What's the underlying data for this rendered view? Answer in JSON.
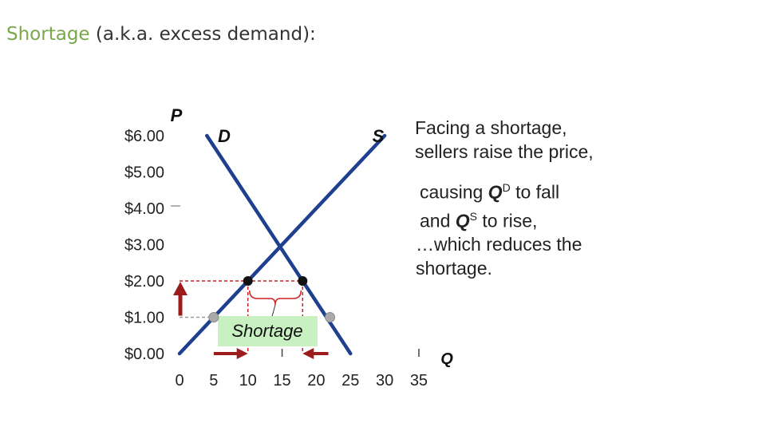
{
  "title": {
    "accent": "Shortage",
    "rest": " (a.k.a. excess demand):"
  },
  "annotations": {
    "line1": "Facing a shortage,",
    "line2": "sellers raise the price,",
    "line3a": "causing ",
    "line3q": "Q",
    "line3sup": "D",
    "line3b": " to fall",
    "line4a": "and ",
    "line4q": "Q",
    "line4sup": "S",
    "line4b": " to rise,",
    "line5": "…which reduces the",
    "line6": "shortage."
  },
  "colors": {
    "curve": "#1f3f8f",
    "arrow": "#9c1c1c",
    "dashed": "#cc2222",
    "shortage_box": "#c8f0c0",
    "accent": "#7aa84a"
  },
  "chart_data": {
    "type": "line",
    "ylabel": "P",
    "xlabel": "Q",
    "xlim": [
      0,
      35
    ],
    "ylim": [
      0,
      6
    ],
    "x_ticks": [
      "0",
      "5",
      "10",
      "15",
      "20",
      "25",
      "30",
      "35"
    ],
    "y_ticks": [
      "$0.00",
      "$1.00",
      "$2.00",
      "$3.00",
      "$4.00",
      "$5.00",
      "$6.00"
    ],
    "series": [
      {
        "name": "D",
        "points": [
          [
            4,
            6
          ],
          [
            25,
            0
          ]
        ]
      },
      {
        "name": "S",
        "points": [
          [
            0,
            0
          ],
          [
            30,
            6
          ]
        ]
      }
    ],
    "price_ceiling_initial": 1,
    "price_raised": 2,
    "points_at_initial": [
      [
        5,
        1
      ],
      [
        22,
        1
      ]
    ],
    "points_at_raised": [
      [
        10,
        2
      ],
      [
        18,
        2
      ]
    ],
    "shortage_label": "Shortage"
  }
}
